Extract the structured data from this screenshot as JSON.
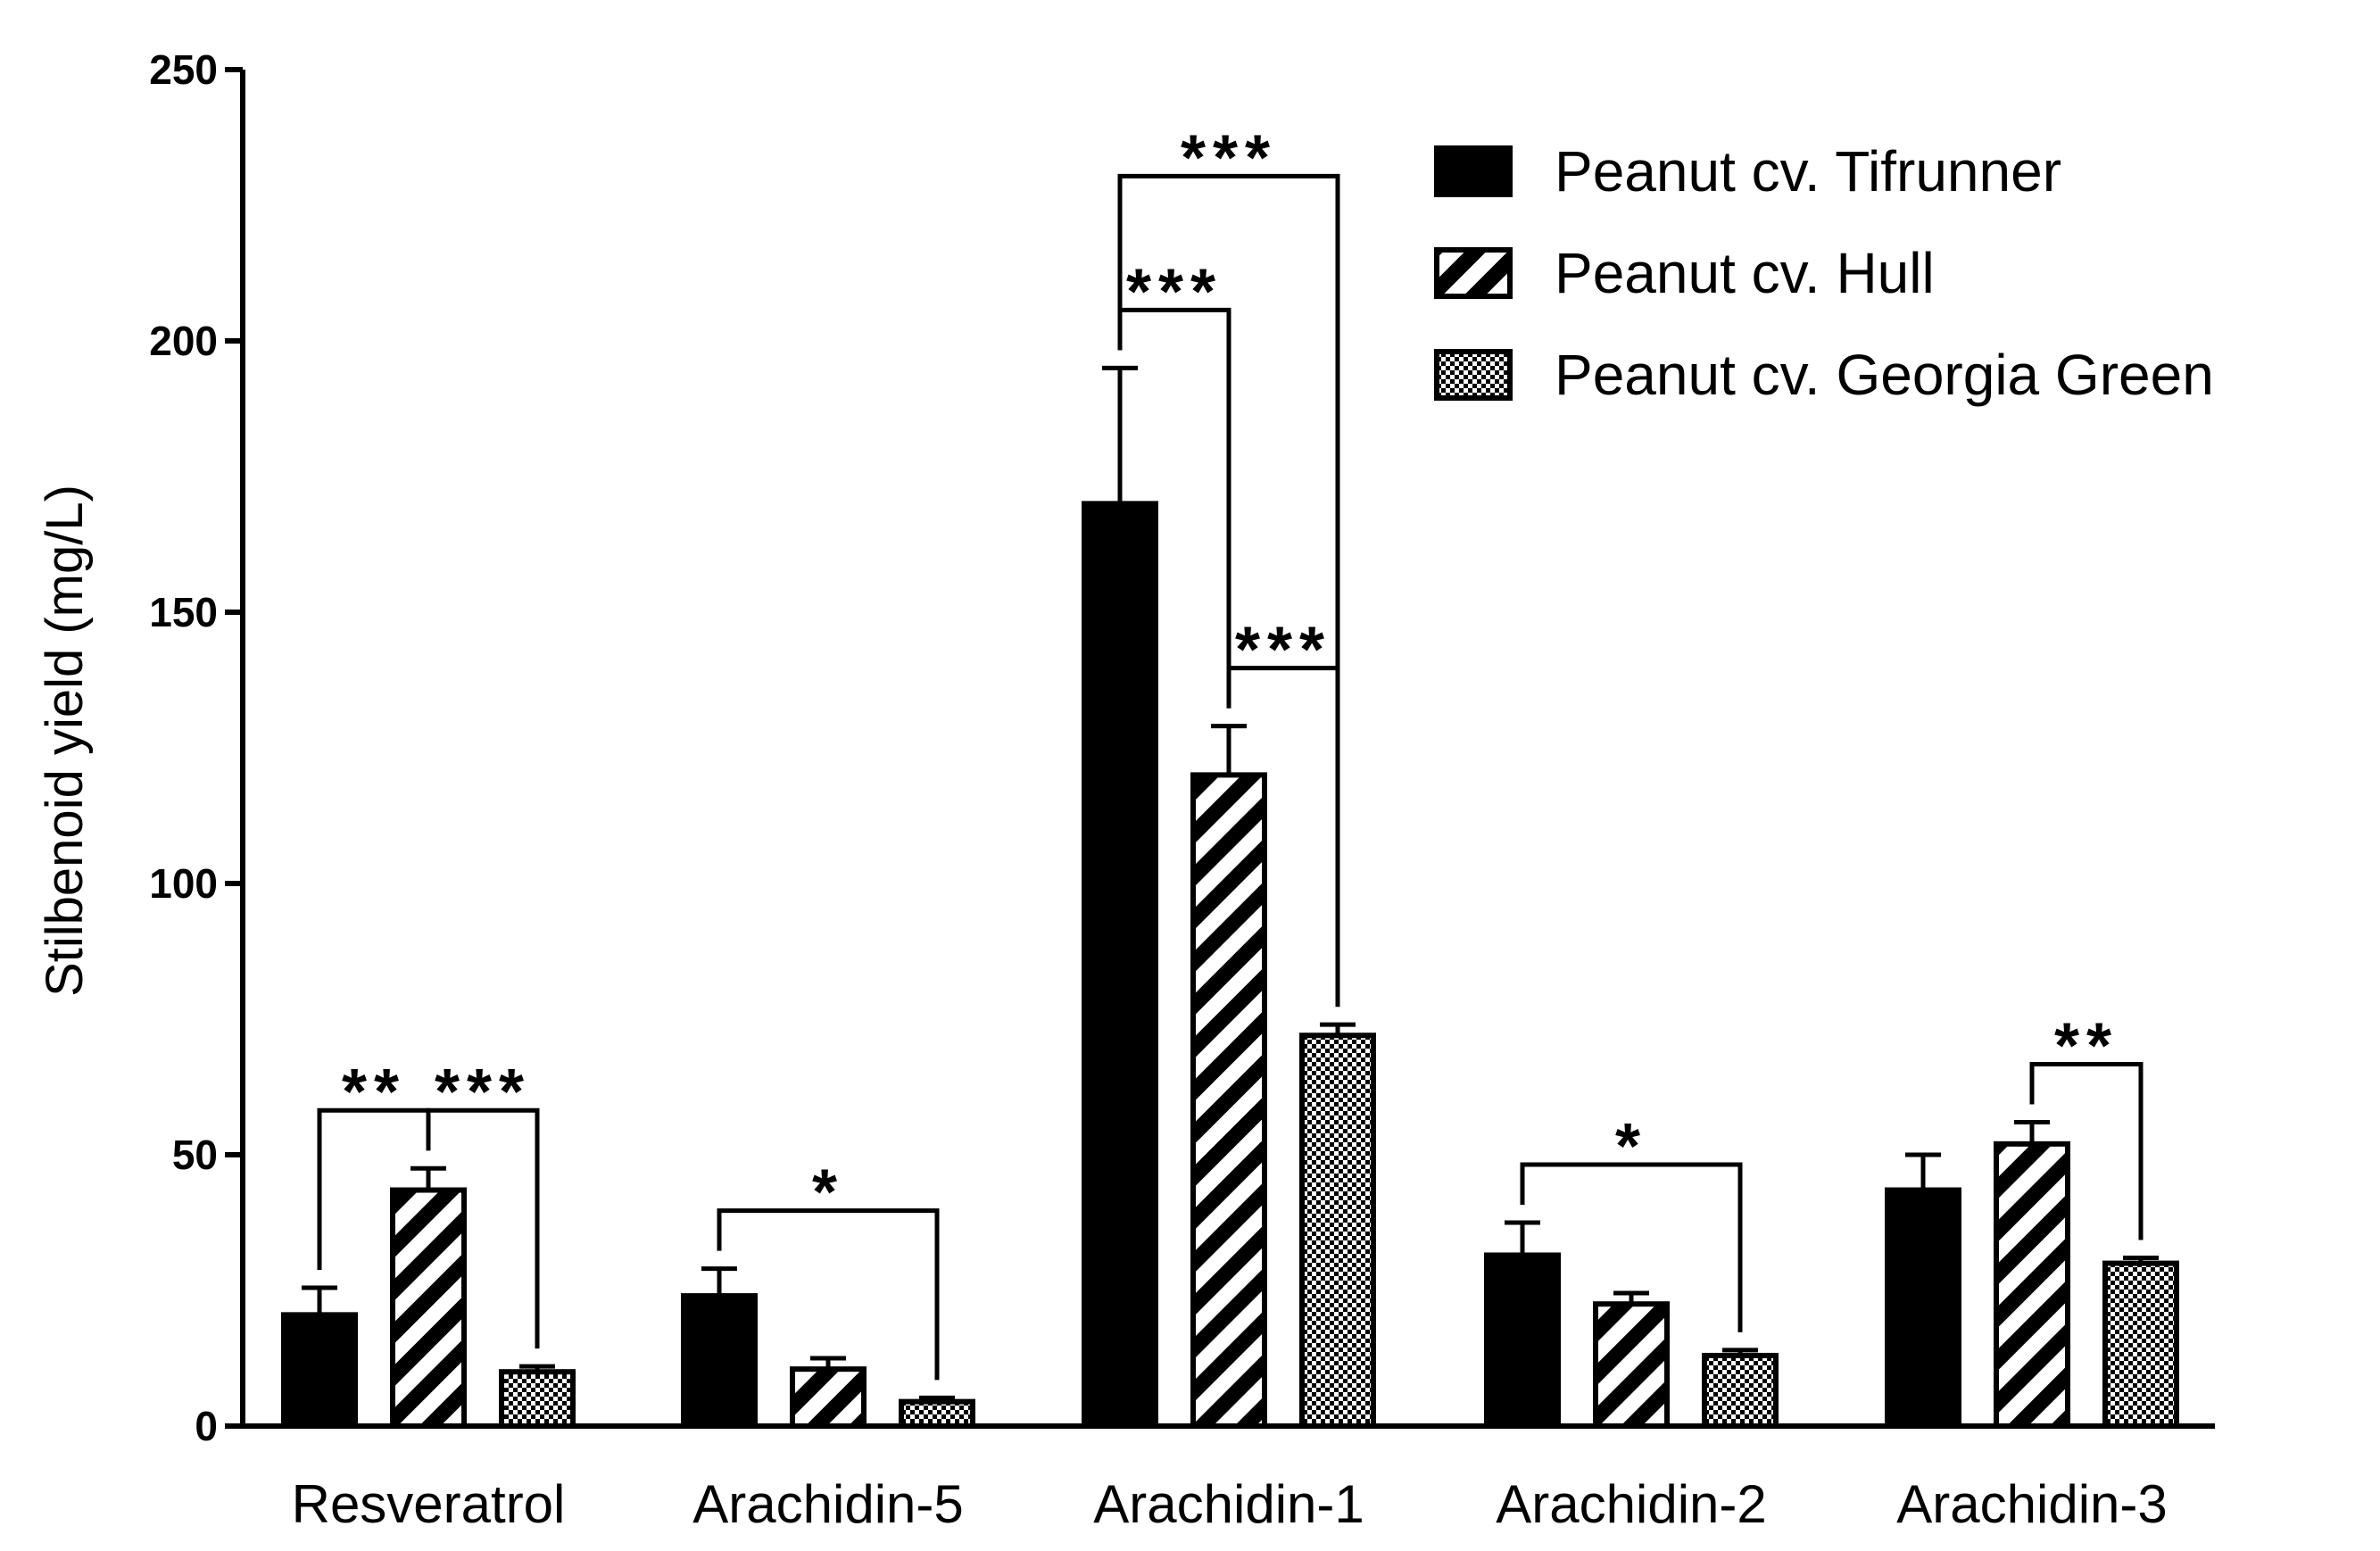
{
  "chart_data": {
    "type": "bar",
    "title": "",
    "xlabel": "",
    "ylabel": "Stilbenoid yield (mg/L)",
    "ylim": [
      0,
      250
    ],
    "yticks": [
      0,
      50,
      100,
      150,
      200,
      250
    ],
    "grid": false,
    "legend_position": "top-right",
    "categories": [
      "Resveratrol",
      "Arachidin-5",
      "Arachidin-1",
      "Arachidin-2",
      "Arachidin-3"
    ],
    "series": [
      {
        "name": "Peanut cv. Tifrunner",
        "pattern": "solid",
        "color": "#000000",
        "values": [
          20.5,
          24,
          170,
          31.5,
          43.5
        ],
        "errors": [
          5,
          5,
          25,
          6,
          6.5
        ]
      },
      {
        "name": "Peanut cv. Hull",
        "pattern": "diagonal-stripes",
        "color": "#000000",
        "values": [
          43.5,
          10.5,
          120,
          22.5,
          52
        ],
        "errors": [
          4,
          2,
          9,
          2,
          4
        ]
      },
      {
        "name": "Peanut cv. Georgia Green",
        "pattern": "checkered",
        "color": "#000000",
        "values": [
          10,
          4.5,
          72,
          13,
          30
        ],
        "errors": [
          1,
          0.7,
          2,
          1,
          1
        ]
      }
    ],
    "significance": [
      {
        "category": 0,
        "from_series": 0,
        "to_series": 1,
        "label": "**"
      },
      {
        "category": 0,
        "from_series": 1,
        "to_series": 2,
        "label": "***"
      },
      {
        "category": 1,
        "from_series": 0,
        "to_series": 2,
        "label": "*"
      },
      {
        "category": 2,
        "from_series": 0,
        "to_series": 1,
        "label": "***"
      },
      {
        "category": 2,
        "from_series": 0,
        "to_series": 2,
        "label": "***"
      },
      {
        "category": 2,
        "from_series": 1,
        "to_series": 2,
        "label": "***"
      },
      {
        "category": 3,
        "from_series": 0,
        "to_series": 2,
        "label": "*"
      },
      {
        "category": 4,
        "from_series": 1,
        "to_series": 2,
        "label": "**"
      }
    ]
  }
}
